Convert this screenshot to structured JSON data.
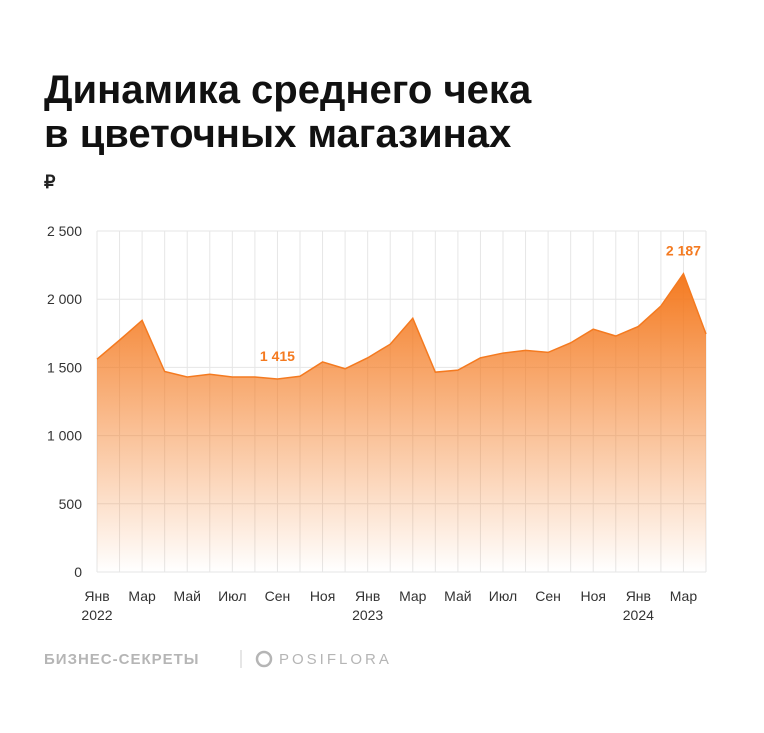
{
  "chart_data": {
    "type": "area",
    "title": [
      "Динамика среднего чека",
      "в цветочных магазинах"
    ],
    "unit": "₽",
    "categories": [
      "Янв",
      null,
      "Мар",
      null,
      "Май",
      null,
      "Июл",
      null,
      "Сен",
      null,
      "Ноя",
      null,
      "Янв",
      null,
      "Мар",
      null,
      "Май",
      null,
      "Июл",
      null,
      "Сен",
      null,
      "Ноя",
      null,
      "Янв",
      null,
      "Мар",
      null
    ],
    "x_years": [
      "2022",
      null,
      null,
      null,
      null,
      null,
      null,
      null,
      null,
      null,
      null,
      null,
      "2023",
      null,
      null,
      null,
      null,
      null,
      null,
      null,
      null,
      null,
      null,
      null,
      "2024",
      null,
      null,
      null
    ],
    "series": [
      {
        "name": "Средний чек",
        "color": "#f47a20",
        "values": [
          1560,
          1700,
          1845,
          1470,
          1430,
          1450,
          1430,
          1430,
          1415,
          1435,
          1540,
          1490,
          1570,
          1670,
          1860,
          1465,
          1480,
          1570,
          1605,
          1625,
          1610,
          1680,
          1780,
          1730,
          1800,
          1950,
          2187,
          1745
        ],
        "value_labels": [
          null,
          null,
          null,
          null,
          null,
          null,
          null,
          null,
          "1 415",
          null,
          null,
          null,
          null,
          null,
          null,
          null,
          null,
          null,
          null,
          null,
          null,
          null,
          null,
          null,
          null,
          null,
          "2 187",
          null
        ]
      }
    ],
    "ylim": [
      0,
      2500
    ],
    "yticks": [
      0,
      500,
      {
        "value": 1000,
        "label": "1 000"
      },
      {
        "value": 1500,
        "label": "1 500"
      },
      {
        "value": 2000,
        "label": "2 000"
      },
      {
        "value": 2500,
        "label": "2 500"
      }
    ],
    "grid": true,
    "sources": [
      "БИЗНЕС-СЕКРЕТЫ",
      "POSIFLORA"
    ]
  }
}
